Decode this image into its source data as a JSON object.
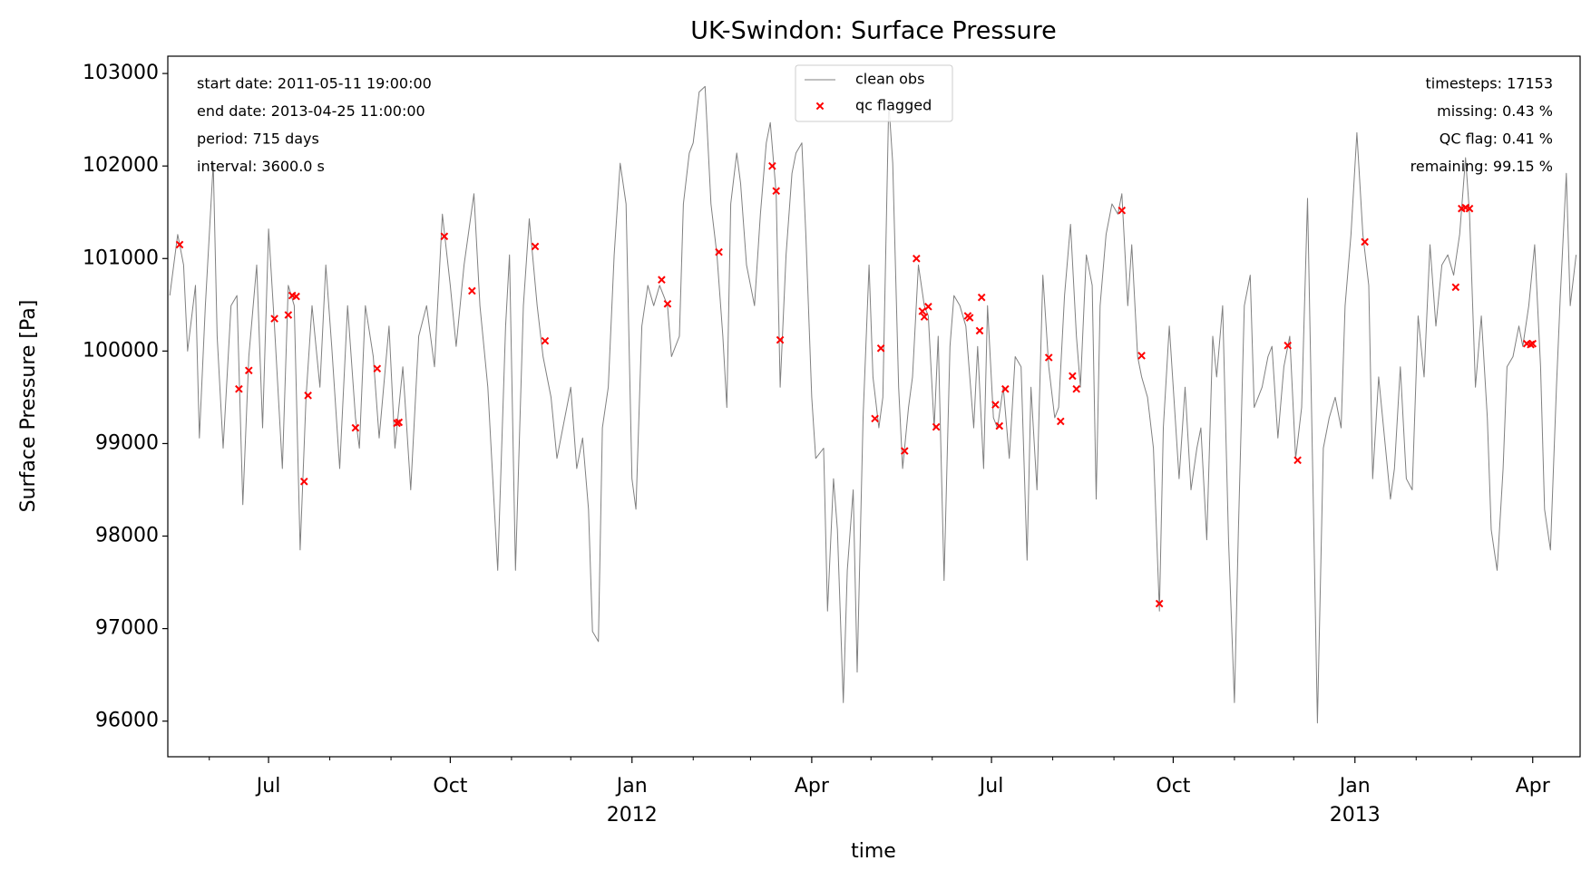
{
  "chart_data": {
    "type": "line",
    "title": "UK-Swindon: Surface Pressure",
    "xlabel": "time",
    "ylabel": "Surface Pressure [Pa]",
    "annotations_left": [
      "start date: 2011-05-11 19:00:00",
      "end date: 2013-04-25 11:00:00",
      "period: 715 days",
      "interval: 3600.0 s"
    ],
    "annotations_right": [
      "timesteps: 17153",
      "missing: 0.43 %",
      "QC flag: 0.41 %",
      "remaining: 99.15 %"
    ],
    "legend": "upper center",
    "xlim": [
      "2011-05-11",
      "2013-04-25"
    ],
    "xticks": [
      {
        "value": "2011-07-01",
        "label": "Jul"
      },
      {
        "value": "2011-10-01",
        "label": "Oct"
      },
      {
        "value": "2012-01-01",
        "label": "Jan",
        "year": "2012"
      },
      {
        "value": "2012-04-01",
        "label": "Apr"
      },
      {
        "value": "2012-07-01",
        "label": "Jul"
      },
      {
        "value": "2012-10-01",
        "label": "Oct"
      },
      {
        "value": "2013-01-01",
        "label": "Jan",
        "year": "2013"
      },
      {
        "value": "2013-04-01",
        "label": "Apr"
      }
    ],
    "xminorticks": [
      "2011-06-01",
      "2011-08-01",
      "2011-09-01",
      "2011-11-01",
      "2011-12-01",
      "2012-02-01",
      "2012-03-01",
      "2012-05-01",
      "2012-06-01",
      "2012-08-01",
      "2012-09-01",
      "2012-11-01",
      "2012-12-01",
      "2013-02-01",
      "2013-03-01"
    ],
    "ylim": [
      95615,
      103187
    ],
    "yticks": [
      96000,
      97000,
      98000,
      99000,
      100000,
      101000,
      102000,
      103000
    ],
    "series": [
      {
        "name": "clean obs",
        "type": "line",
        "color": "#808080",
        "x": [
          "2011-05-12",
          "2011-05-16",
          "2011-05-19",
          "2011-05-21",
          "2011-05-25",
          "2011-05-27",
          "2011-05-30",
          "2011-06-03",
          "2011-06-05",
          "2011-06-08",
          "2011-06-12",
          "2011-06-15",
          "2011-06-18",
          "2011-06-21",
          "2011-06-25",
          "2011-06-28",
          "2011-07-01",
          "2011-07-04",
          "2011-07-08",
          "2011-07-11",
          "2011-07-14",
          "2011-07-17",
          "2011-07-20",
          "2011-07-23",
          "2011-07-27",
          "2011-07-30",
          "2011-08-02",
          "2011-08-06",
          "2011-08-10",
          "2011-08-14",
          "2011-08-16",
          "2011-08-19",
          "2011-08-23",
          "2011-08-26",
          "2011-08-31",
          "2011-09-03",
          "2011-09-07",
          "2011-09-11",
          "2011-09-15",
          "2011-09-19",
          "2011-09-23",
          "2011-09-27",
          "2011-10-01",
          "2011-10-04",
          "2011-10-08",
          "2011-10-13",
          "2011-10-16",
          "2011-10-20",
          "2011-10-25",
          "2011-10-29",
          "2011-10-31",
          "2011-11-03",
          "2011-11-07",
          "2011-11-10",
          "2011-11-14",
          "2011-11-17",
          "2011-11-21",
          "2011-11-24",
          "2011-11-27",
          "2011-12-01",
          "2011-12-04",
          "2011-12-07",
          "2011-12-10",
          "2011-12-12",
          "2011-12-15",
          "2011-12-17",
          "2011-12-20",
          "2011-12-23",
          "2011-12-26",
          "2011-12-29",
          "2012-01-01",
          "2012-01-03",
          "2012-01-06",
          "2012-01-09",
          "2012-01-12",
          "2012-01-15",
          "2012-01-19",
          "2012-01-21",
          "2012-01-25",
          "2012-01-27",
          "2012-01-30",
          "2012-02-01",
          "2012-02-04",
          "2012-02-07",
          "2012-02-10",
          "2012-02-13",
          "2012-02-16",
          "2012-02-18",
          "2012-02-20",
          "2012-02-23",
          "2012-02-25",
          "2012-02-28",
          "2012-03-03",
          "2012-03-06",
          "2012-03-09",
          "2012-03-11",
          "2012-03-14",
          "2012-03-16",
          "2012-03-19",
          "2012-03-22",
          "2012-03-24",
          "2012-03-27",
          "2012-03-29",
          "2012-04-01",
          "2012-04-03",
          "2012-04-07",
          "2012-04-09",
          "2012-04-12",
          "2012-04-14",
          "2012-04-17",
          "2012-04-19",
          "2012-04-22",
          "2012-04-24",
          "2012-04-27",
          "2012-04-30",
          "2012-05-02",
          "2012-05-05",
          "2012-05-07",
          "2012-05-10",
          "2012-05-12",
          "2012-05-15",
          "2012-05-17",
          "2012-05-20",
          "2012-05-22",
          "2012-05-25",
          "2012-05-28",
          "2012-05-30",
          "2012-06-02",
          "2012-06-04",
          "2012-06-07",
          "2012-06-10",
          "2012-06-12",
          "2012-06-15",
          "2012-06-18",
          "2012-06-22",
          "2012-06-24",
          "2012-06-27",
          "2012-06-29",
          "2012-07-02",
          "2012-07-04",
          "2012-07-07",
          "2012-07-10",
          "2012-07-13",
          "2012-07-16",
          "2012-07-19",
          "2012-07-21",
          "2012-07-24",
          "2012-07-27",
          "2012-07-30",
          "2012-08-02",
          "2012-08-04",
          "2012-08-07",
          "2012-08-10",
          "2012-08-13",
          "2012-08-15",
          "2012-08-18",
          "2012-08-21",
          "2012-08-23",
          "2012-08-25",
          "2012-08-28",
          "2012-08-31",
          "2012-09-03",
          "2012-09-05",
          "2012-09-08",
          "2012-09-10",
          "2012-09-13",
          "2012-09-15",
          "2012-09-18",
          "2012-09-21",
          "2012-09-24",
          "2012-09-26",
          "2012-09-29",
          "2012-10-02",
          "2012-10-04",
          "2012-10-07",
          "2012-10-10",
          "2012-10-13",
          "2012-10-15",
          "2012-10-18",
          "2012-10-21",
          "2012-10-23",
          "2012-10-26",
          "2012-10-29",
          "2012-11-01",
          "2012-11-03",
          "2012-11-06",
          "2012-11-09",
          "2012-11-11",
          "2012-11-15",
          "2012-11-18",
          "2012-11-20",
          "2012-11-23",
          "2012-11-26",
          "2012-11-29",
          "2012-12-02",
          "2012-12-05",
          "2012-12-08",
          "2012-12-11",
          "2012-12-13",
          "2012-12-16",
          "2012-12-19",
          "2012-12-22",
          "2012-12-25",
          "2012-12-27",
          "2012-12-30",
          "2013-01-02",
          "2013-01-05",
          "2013-01-08",
          "2013-01-10",
          "2013-01-13",
          "2013-01-16",
          "2013-01-19",
          "2013-01-21",
          "2013-01-24",
          "2013-01-27",
          "2013-01-30",
          "2013-02-02",
          "2013-02-05",
          "2013-02-08",
          "2013-02-11",
          "2013-02-14",
          "2013-02-17",
          "2013-02-20",
          "2013-02-23",
          "2013-02-26",
          "2013-02-28",
          "2013-03-03",
          "2013-03-06",
          "2013-03-09",
          "2013-03-11",
          "2013-03-14",
          "2013-03-17",
          "2013-03-19",
          "2013-03-22",
          "2013-03-25",
          "2013-03-27",
          "2013-03-30",
          "2013-04-02",
          "2013-04-05",
          "2013-04-07",
          "2013-04-10",
          "2013-04-13",
          "2013-04-15",
          "2013-04-18",
          "2013-04-20",
          "2013-04-23"
        ],
        "values": [
          100600,
          101260,
          100930,
          100000,
          100710,
          99060,
          100490,
          102030,
          100160,
          98950,
          100490,
          100600,
          98340,
          99940,
          100930,
          99170,
          101320,
          100270,
          98730,
          100710,
          100490,
          97850,
          99500,
          100490,
          99610,
          100930,
          100050,
          98730,
          100490,
          99280,
          98950,
          100490,
          99940,
          99060,
          100270,
          98950,
          99830,
          98500,
          100160,
          100490,
          99830,
          101480,
          100710,
          100050,
          100930,
          101700,
          100490,
          99610,
          97630,
          100270,
          101040,
          97630,
          100490,
          101430,
          100490,
          99940,
          99500,
          98840,
          99170,
          99610,
          98730,
          99060,
          98290,
          96970,
          96860,
          99170,
          99610,
          101040,
          102030,
          101590,
          98620,
          98290,
          100270,
          100710,
          100490,
          100710,
          100490,
          99940,
          100160,
          101590,
          102140,
          102250,
          102800,
          102860,
          101590,
          101040,
          100160,
          99390,
          101590,
          102140,
          101810,
          100930,
          100490,
          101480,
          102250,
          102470,
          101700,
          99610,
          101040,
          101920,
          102140,
          102250,
          101260,
          99500,
          98840,
          98950,
          97190,
          98620,
          98070,
          96200,
          97630,
          98500,
          96530,
          99280,
          100930,
          99720,
          99170,
          99500,
          102690,
          102030,
          99610,
          98730,
          99390,
          99720,
          100930,
          100490,
          100380,
          99170,
          100160,
          97520,
          100050,
          100600,
          100490,
          100270,
          99170,
          100050,
          98730,
          100490,
          99280,
          99170,
          99610,
          98840,
          99940,
          99830,
          97740,
          99610,
          98500,
          100820,
          99830,
          99280,
          99390,
          100600,
          101370,
          100160,
          99610,
          101040,
          100710,
          98400,
          100490,
          101260,
          101590,
          101480,
          101700,
          100490,
          101150,
          99940,
          99720,
          99500,
          98950,
          97190,
          99170,
          100270,
          99280,
          98620,
          99610,
          98500,
          98950,
          99170,
          97960,
          100160,
          99720,
          100490,
          97960,
          96200,
          98070,
          100490,
          100820,
          99390,
          99610,
          99940,
          100050,
          99060,
          99830,
          100160,
          98840,
          99390,
          101650,
          98290,
          95980,
          98950,
          99280,
          99500,
          99170,
          100490,
          101260,
          102360,
          101260,
          100710,
          98620,
          99720,
          99060,
          98400,
          98730,
          99830,
          98620,
          98500,
          100380,
          99720,
          101150,
          100270,
          100930,
          101040,
          100820,
          101260,
          102090,
          101480,
          99610,
          100380,
          99280,
          98070,
          97630,
          98730,
          99830,
          99940,
          100270,
          100050,
          100490,
          101150,
          99830,
          98290,
          97850,
          99610,
          100600,
          101920,
          100490,
          101040
        ]
      },
      {
        "name": "qc flagged",
        "type": "scatter",
        "marker": "x",
        "color": "#ff0000",
        "x": [
          "2011-05-17",
          "2011-06-16",
          "2011-06-21",
          "2011-07-04",
          "2011-07-11",
          "2011-07-13",
          "2011-07-15",
          "2011-07-19",
          "2011-07-21",
          "2011-08-14",
          "2011-08-25",
          "2011-09-04",
          "2011-09-05",
          "2011-09-28",
          "2011-10-12",
          "2011-11-13",
          "2011-11-18",
          "2012-01-16",
          "2012-01-19",
          "2012-02-14",
          "2012-03-12",
          "2012-03-14",
          "2012-03-16",
          "2012-05-03",
          "2012-05-06",
          "2012-05-18",
          "2012-05-24",
          "2012-05-27",
          "2012-05-28",
          "2012-05-30",
          "2012-06-03",
          "2012-06-19",
          "2012-06-20",
          "2012-06-25",
          "2012-06-26",
          "2012-07-03",
          "2012-07-05",
          "2012-07-08",
          "2012-07-30",
          "2012-08-05",
          "2012-08-11",
          "2012-08-13",
          "2012-09-05",
          "2012-09-15",
          "2012-09-24",
          "2012-11-28",
          "2012-12-03",
          "2013-01-06",
          "2013-02-21",
          "2013-02-24",
          "2013-02-26",
          "2013-02-28",
          "2013-03-29",
          "2013-03-31",
          "2013-04-01"
        ],
        "values": [
          101150,
          99590,
          99790,
          100350,
          100390,
          100600,
          100590,
          98590,
          99520,
          99170,
          99810,
          99220,
          99230,
          101240,
          100650,
          101130,
          100110,
          100770,
          100510,
          101070,
          102000,
          101730,
          100120,
          99270,
          100030,
          98920,
          101000,
          100430,
          100370,
          100480,
          99180,
          100380,
          100360,
          100220,
          100580,
          99420,
          99190,
          99590,
          99930,
          99240,
          99730,
          99590,
          101520,
          99950,
          97270,
          100060,
          98820,
          101180,
          100690,
          101540,
          101550,
          101540,
          100080,
          100070,
          100080
        ]
      }
    ]
  }
}
